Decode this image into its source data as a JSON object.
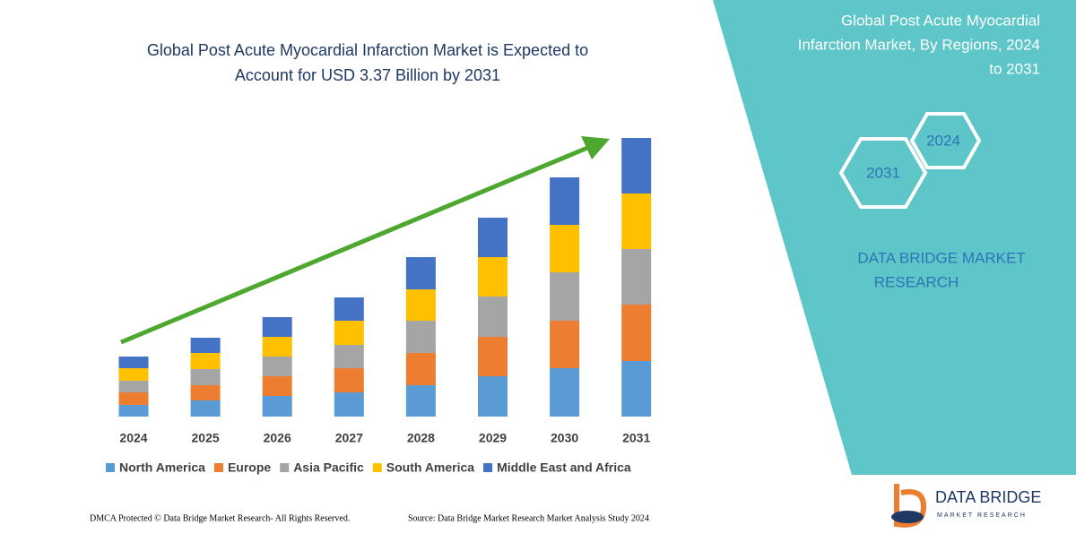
{
  "chart_data": {
    "type": "stacked_bar",
    "title_lines": [
      "Global Post Acute Myocardial Infarction Market is Expected to",
      "Account for USD 3.37 Billion by 2031"
    ],
    "categories": [
      "2024",
      "2025",
      "2026",
      "2027",
      "2028",
      "2029",
      "2030",
      "2031"
    ],
    "ylim": [
      0,
      320
    ],
    "series": [
      {
        "name": "North America",
        "color": "#5b9bd5",
        "values": [
          13,
          18,
          23,
          27,
          35,
          45,
          54,
          62
        ]
      },
      {
        "name": "Europe",
        "color": "#ed7d31",
        "values": [
          14,
          17,
          22,
          27,
          36,
          44,
          53,
          63
        ]
      },
      {
        "name": "Asia Pacific",
        "color": "#a5a5a5",
        "values": [
          13,
          18,
          22,
          26,
          36,
          45,
          54,
          62
        ]
      },
      {
        "name": "South America",
        "color": "#ffc000",
        "values": [
          14,
          18,
          22,
          27,
          35,
          44,
          53,
          62
        ]
      },
      {
        "name": "Middle East and Africa",
        "color": "#4472c4",
        "values": [
          13,
          17,
          22,
          26,
          36,
          44,
          53,
          62
        ]
      }
    ]
  },
  "side_panel": {
    "title_lines": [
      "Global Post Acute Myocardial",
      "Infarction Market, By Regions, 2024",
      "to 2031"
    ],
    "hexagons": [
      "2024",
      "2031"
    ],
    "brand_lines": [
      "DATA BRIDGE MARKET",
      "RESEARCH"
    ]
  },
  "footer": {
    "left": "DMCA Protected © Data Bridge Market Research-  All Rights Reserved.",
    "right": "Source: Data Bridge Market Research  Market Analysis Study 2024"
  },
  "logo": {
    "name": "DATA BRIDGE",
    "tagline": "MARKET RESEARCH"
  }
}
